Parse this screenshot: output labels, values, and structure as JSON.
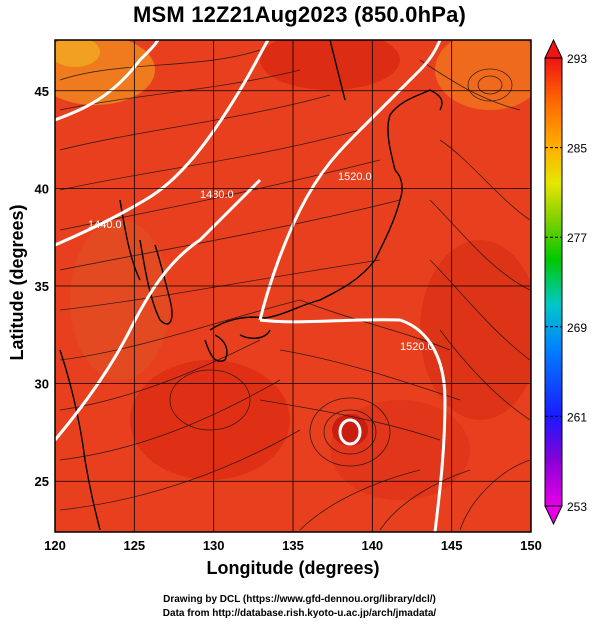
{
  "title": "MSM 12Z21Aug2023 (850.0hPa)",
  "xlabel": "Longitude (degrees)",
  "ylabel": "Latitude  (degrees)",
  "credit_line1": "Drawing by DCL (https://www.gfd-dennou.org/library/dcl/)",
  "credit_line2": "Data from http://database.rish.kyoto-u.ac.jp/arch/jmadata/",
  "map": {
    "lon_range": [
      120,
      150
    ],
    "lat_range": [
      22.4,
      47.6
    ],
    "lon_ticks": [
      120,
      125,
      130,
      135,
      140,
      145,
      150
    ],
    "lat_ticks": [
      25,
      30,
      35,
      40,
      45
    ],
    "lon_tick_labels": [
      "120",
      "125",
      "130",
      "135",
      "140",
      "145",
      "150"
    ],
    "lat_tick_labels": [
      "25",
      "30",
      "35",
      "40",
      "45"
    ],
    "grid": true,
    "field": "temperature shading with wind streamlines and geopotential height contours"
  },
  "colorbar": {
    "min": 253,
    "max": 293,
    "orientation": "vertical",
    "placement": "right",
    "tick_labels": [
      "293",
      "285",
      "277",
      "269",
      "261",
      "253"
    ],
    "tick_values": [
      293,
      285,
      277,
      269,
      261,
      253
    ]
  },
  "contours": [
    {
      "label": "1440.0"
    },
    {
      "label": "1480.0"
    },
    {
      "label": "1520.0"
    },
    {
      "label": "1520.0"
    }
  ],
  "colors": {
    "field_main": "#e83a1c",
    "field_warm": "#d9230f",
    "field_orange": "#f0641c",
    "contour": "#ffffff",
    "coast": "#000000"
  }
}
